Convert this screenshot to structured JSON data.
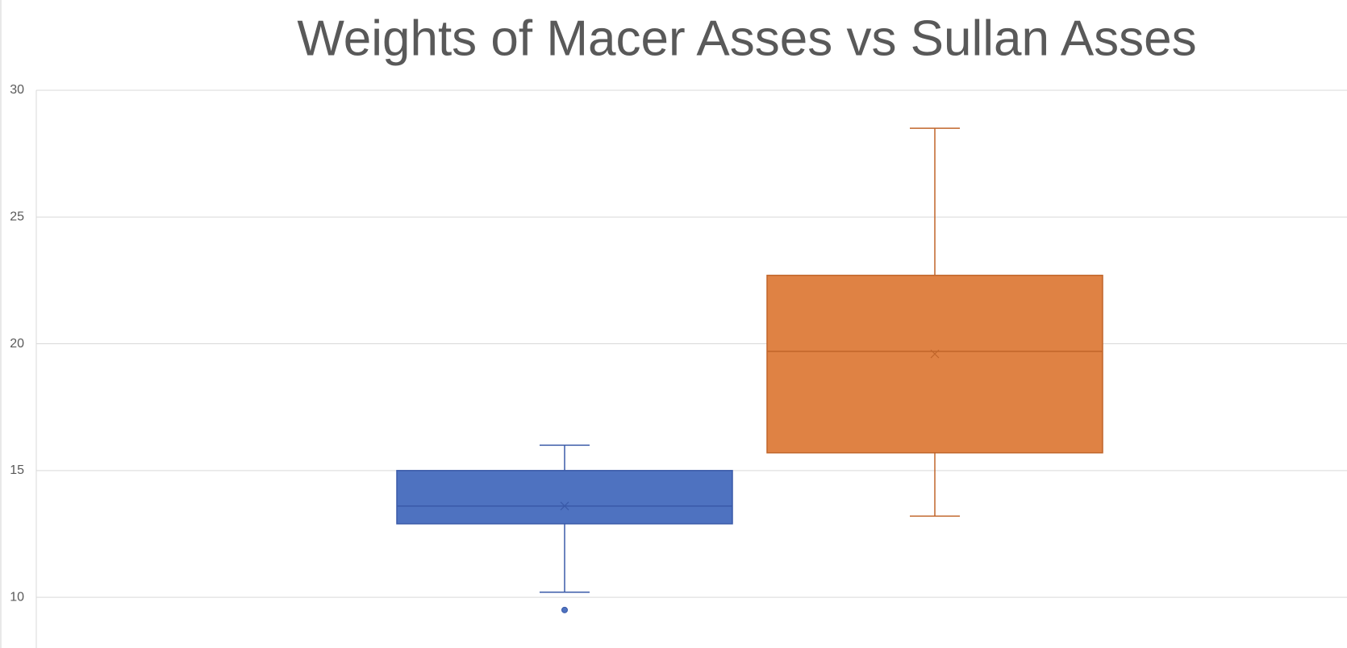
{
  "chart_data": {
    "type": "box",
    "title": "Weights of Macer Asses vs Sullan Asses",
    "series": [
      {
        "color": "#4e72c0",
        "min": 10.2,
        "q1": 12.9,
        "median": 13.6,
        "q3": 15.0,
        "max": 16.0,
        "mean": 13.6,
        "outliers": [
          9.5
        ]
      },
      {
        "color": "#df8244",
        "min": 13.2,
        "q1": 15.7,
        "median": 19.7,
        "q3": 22.7,
        "max": 28.5,
        "mean": 19.6,
        "outliers": []
      }
    ],
    "ylim": [
      8,
      30
    ],
    "yticks": [
      10,
      15,
      20,
      25,
      30
    ],
    "grid": true
  }
}
